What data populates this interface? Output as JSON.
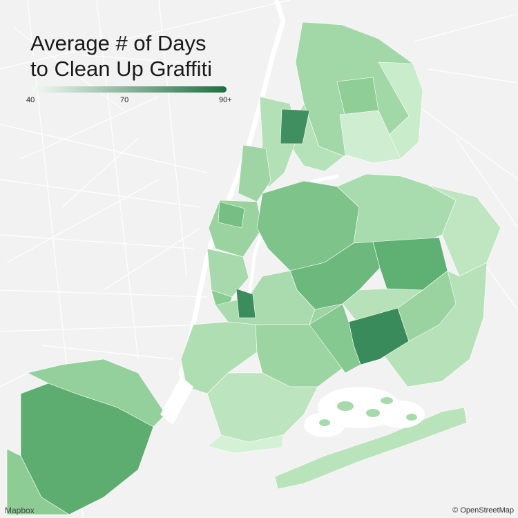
{
  "title": {
    "line1": "Average # of Days",
    "line2": "to Clean Up Graffiti"
  },
  "legend": {
    "min_label": "40",
    "mid_label": "70",
    "max_label": "90+",
    "color_low": "#f3faf4",
    "color_high": "#1d6e41"
  },
  "attribution": {
    "provider": "Mapbox",
    "copyright": "© OpenStreetMap"
  },
  "colors": {
    "background": "#f2f2f2",
    "water_roads": "#ffffff"
  }
}
